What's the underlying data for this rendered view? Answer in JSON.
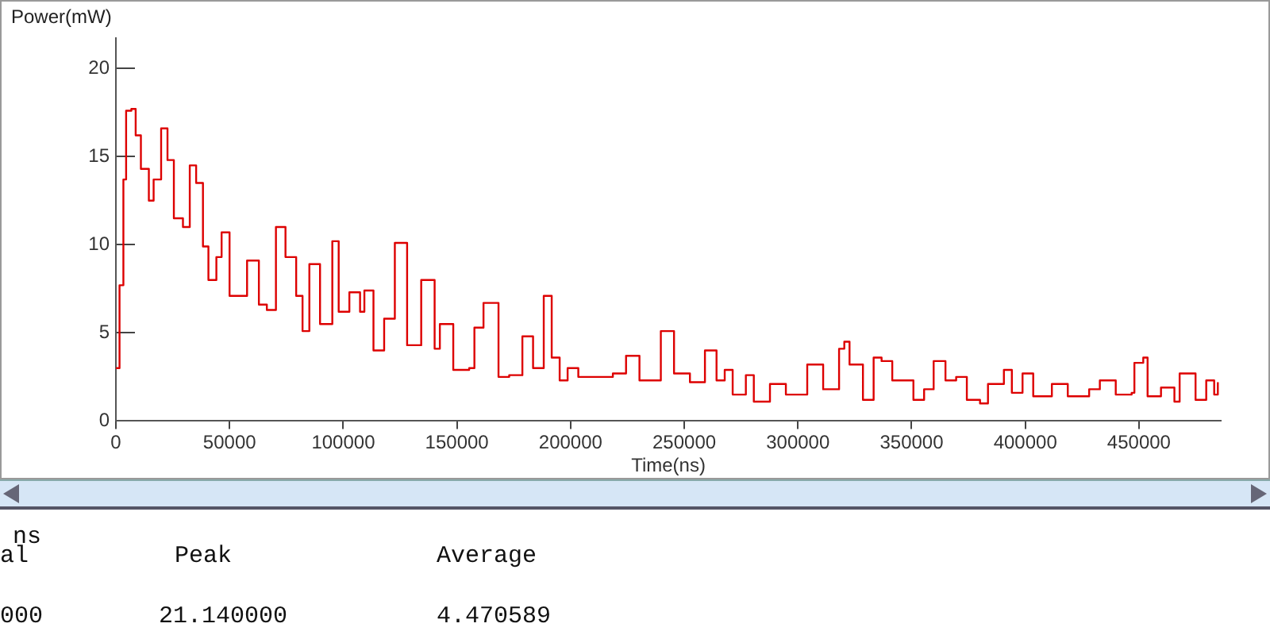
{
  "chart_data": {
    "type": "step",
    "xlabel": "Time(ns)",
    "ylabel": "Power(mW)",
    "x": [
      0,
      1600,
      3300,
      4500,
      6800,
      8700,
      11000,
      14500,
      16600,
      19900,
      22700,
      25500,
      29500,
      32500,
      35300,
      38300,
      40700,
      44200,
      46500,
      50000,
      53500,
      57700,
      62900,
      66400,
      70400,
      74600,
      79300,
      82100,
      85100,
      89800,
      95200,
      98000,
      102700,
      107400,
      109300,
      113300,
      118000,
      122700,
      128100,
      134300,
      140200,
      142500,
      148400,
      155400,
      157700,
      161700,
      168300,
      173000,
      178800,
      183500,
      188200,
      191700,
      195200,
      198700,
      203400,
      212800,
      218600,
      224400,
      230300,
      235000,
      239700,
      245500,
      252500,
      259100,
      264200,
      267800,
      271300,
      277100,
      280600,
      287700,
      294700,
      304100,
      311100,
      318100,
      320400,
      322700,
      328600,
      333300,
      336800,
      341500,
      350800,
      355500,
      359700,
      364900,
      369600,
      374300,
      380100,
      383600,
      390600,
      394100,
      398800,
      403500,
      411700,
      418700,
      428100,
      432800,
      439800,
      446800,
      448000,
      451900,
      453800,
      459700,
      465600,
      467900,
      474900,
      479600,
      483100,
      484700
    ],
    "series": [
      {
        "color": "#dd0000",
        "values": [
          3.0,
          7.7,
          13.7,
          17.6,
          17.7,
          16.2,
          14.3,
          12.5,
          13.7,
          16.6,
          14.8,
          11.5,
          11.0,
          14.5,
          13.5,
          9.9,
          8.0,
          9.3,
          10.7,
          7.1,
          7.1,
          9.1,
          6.6,
          6.3,
          11.0,
          9.3,
          7.1,
          5.1,
          8.9,
          5.5,
          10.2,
          6.2,
          7.3,
          6.2,
          7.4,
          4.0,
          5.8,
          10.1,
          4.3,
          8.0,
          4.1,
          5.5,
          2.9,
          3.0,
          5.3,
          6.7,
          2.5,
          2.6,
          4.8,
          3.0,
          7.1,
          3.6,
          2.3,
          3.0,
          2.5,
          2.5,
          2.7,
          3.7,
          2.3,
          2.3,
          5.1,
          2.7,
          2.2,
          4.0,
          2.3,
          2.9,
          1.5,
          2.6,
          1.1,
          2.1,
          1.5,
          3.2,
          1.8,
          4.1,
          4.5,
          3.2,
          1.2,
          3.6,
          3.4,
          2.3,
          1.2,
          1.8,
          3.4,
          2.3,
          2.5,
          1.2,
          1.0,
          2.1,
          2.9,
          1.6,
          2.7,
          1.4,
          2.1,
          1.4,
          1.8,
          2.3,
          1.5,
          1.6,
          3.3,
          3.6,
          1.4,
          1.9,
          1.1,
          2.7,
          1.2,
          2.3,
          1.5,
          2.2
        ]
      }
    ],
    "xlim": [
      0,
      486000
    ],
    "ylim": [
      0,
      21.7
    ],
    "xticks": [
      0,
      50000,
      100000,
      150000,
      200000,
      250000,
      300000,
      350000,
      400000,
      450000
    ],
    "yticks": [
      0,
      5,
      10,
      15,
      20
    ],
    "grid": false,
    "legend": false,
    "annotations": [
      "ns",
      "al",
      "Peak",
      "Average",
      "000",
      "21.140000",
      "4.470589"
    ]
  }
}
